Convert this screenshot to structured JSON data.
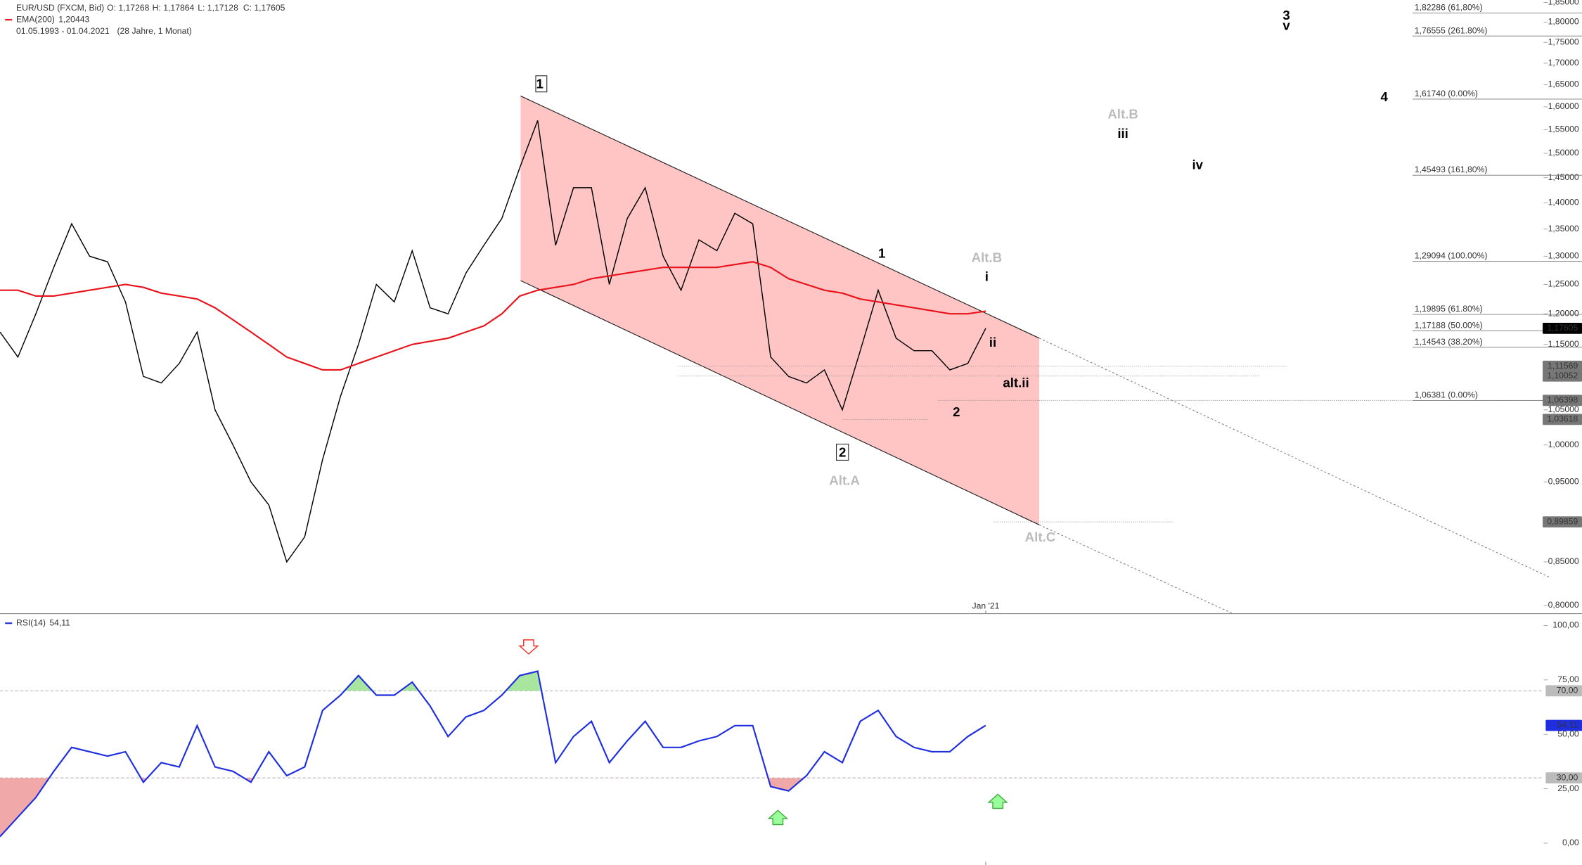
{
  "chart_data": [
    {
      "type": "line",
      "log_y": true,
      "header": {
        "instrument": "EUR/USD (FXCM, Bid)",
        "ohlc": [
          "O: 1,17268",
          "H: 1,17864",
          "L: 1,17128",
          "C: 1,17605"
        ],
        "range": "01.05.1993 - 01.04.2021",
        "range_note": "(28 Jahre, 1 Monat)"
      },
      "categories": [
        null,
        null,
        null,
        null,
        null,
        null,
        null,
        null,
        null,
        null,
        null,
        null,
        null,
        null,
        null,
        null,
        null,
        null,
        null,
        null,
        null,
        null,
        null,
        null,
        null,
        null,
        null,
        null,
        null,
        null,
        null,
        null,
        null,
        null,
        null,
        null,
        null,
        null,
        null,
        null,
        null,
        null,
        null,
        null,
        null,
        null,
        null,
        null,
        null,
        null,
        null,
        null,
        null,
        null,
        null,
        "Jan '21"
      ],
      "series": [
        {
          "name": "EUR/USD",
          "color": "#000000",
          "values": [
            1.17,
            1.13,
            1.2,
            1.28,
            1.36,
            1.3,
            1.29,
            1.22,
            1.1,
            1.09,
            1.12,
            1.17,
            1.05,
            1.0,
            0.95,
            0.92,
            0.85,
            0.88,
            0.98,
            1.07,
            1.15,
            1.25,
            1.22,
            1.31,
            1.21,
            1.2,
            1.27,
            1.32,
            1.37,
            1.47,
            1.57,
            1.32,
            1.43,
            1.43,
            1.25,
            1.37,
            1.43,
            1.3,
            1.24,
            1.33,
            1.31,
            1.38,
            1.36,
            1.13,
            1.1,
            1.09,
            1.11,
            1.05,
            1.14,
            1.24,
            1.16,
            1.14,
            1.14,
            1.11,
            1.12,
            1.17605
          ]
        },
        {
          "name": "EMA(200)",
          "last_label": "1,20443",
          "color": "#e8131b",
          "values": [
            1.24,
            1.24,
            1.23,
            1.23,
            1.235,
            1.24,
            1.245,
            1.25,
            1.245,
            1.235,
            1.23,
            1.225,
            1.21,
            1.19,
            1.17,
            1.15,
            1.13,
            1.12,
            1.11,
            1.11,
            1.12,
            1.13,
            1.14,
            1.15,
            1.155,
            1.16,
            1.17,
            1.18,
            1.2,
            1.23,
            1.24,
            1.245,
            1.25,
            1.26,
            1.265,
            1.27,
            1.275,
            1.28,
            1.28,
            1.28,
            1.28,
            1.285,
            1.29,
            1.28,
            1.26,
            1.25,
            1.24,
            1.235,
            1.225,
            1.22,
            1.215,
            1.21,
            1.205,
            1.2,
            1.2,
            1.20443
          ]
        }
      ],
      "ylim": [
        0.791,
        1.856
      ],
      "yticks": [
        {
          "value": 0.8,
          "label": "0,80000"
        },
        {
          "value": 0.85,
          "label": "0,85000"
        },
        {
          "value": 0.9,
          "label": "0,90000"
        },
        {
          "value": 0.95,
          "label": "0,95000"
        },
        {
          "value": 1.0,
          "label": "1,00000"
        },
        {
          "value": 1.05,
          "label": "1,05000"
        },
        {
          "value": 1.1,
          "label": "1,10000"
        },
        {
          "value": 1.15,
          "label": "1,15000"
        },
        {
          "value": 1.2,
          "label": "1,20000"
        },
        {
          "value": 1.25,
          "label": "1,25000"
        },
        {
          "value": 1.3,
          "label": "1,30000"
        },
        {
          "value": 1.35,
          "label": "1,35000"
        },
        {
          "value": 1.4,
          "label": "1,40000"
        },
        {
          "value": 1.45,
          "label": "1,45000"
        },
        {
          "value": 1.5,
          "label": "1,50000"
        },
        {
          "value": 1.55,
          "label": "1,55000"
        },
        {
          "value": 1.6,
          "label": "1,60000"
        },
        {
          "value": 1.65,
          "label": "1,65000"
        },
        {
          "value": 1.7,
          "label": "1,70000"
        },
        {
          "value": 1.75,
          "label": "1,75000"
        },
        {
          "value": 1.8,
          "label": "1,80000"
        },
        {
          "value": 1.85,
          "label": "1,85000"
        }
      ],
      "fib_levels": [
        {
          "value": 1.82286,
          "label": "1,82286 (61,80%)"
        },
        {
          "value": 1.76555,
          "label": "1,76555 (261.80%)"
        },
        {
          "value": 1.6174,
          "label": "1,61740 (0.00%)"
        },
        {
          "value": 1.45493,
          "label": "1,45493 (161,80%)"
        },
        {
          "value": 1.29094,
          "label": "1,29094 (100.00%)"
        },
        {
          "value": 1.19895,
          "label": "1,19895 (61.80%)"
        },
        {
          "value": 1.17188,
          "label": "1,17188 (50.00%)"
        },
        {
          "value": 1.14543,
          "label": "1,14543 (38.20%)"
        },
        {
          "value": 1.06381,
          "label": "1,06381 (0.00%)"
        }
      ],
      "price_tags": [
        {
          "value": 1.17605,
          "label": "1,17605"
        },
        {
          "value": 1.11569,
          "label": "1,11569"
        },
        {
          "value": 1.10052,
          "label": "1,10052"
        },
        {
          "value": 1.06398,
          "label": "1,06398"
        },
        {
          "value": 1.03618,
          "label": "1,03618"
        },
        {
          "value": 0.89859,
          "label": "0,89859"
        }
      ],
      "wave_labels": [
        "1",
        "2",
        "1",
        "2",
        "Alt.B",
        "i",
        "ii",
        "alt.ii",
        "Alt.A",
        "Alt.C",
        "Alt.B",
        "iii",
        "iv",
        "3",
        "v",
        "4"
      ]
    },
    {
      "type": "line",
      "categories": [
        null,
        null,
        null,
        null,
        null,
        null,
        null,
        null,
        null,
        null,
        null,
        null,
        null,
        null,
        null,
        null,
        null,
        null,
        null,
        null,
        null,
        null,
        null,
        null,
        null,
        null,
        null,
        null,
        null,
        null,
        null,
        null,
        null,
        null,
        null,
        null,
        null,
        null,
        null,
        null,
        null,
        null,
        null,
        null,
        null,
        null,
        null,
        null,
        null,
        null,
        null,
        null,
        null,
        null,
        null,
        "Jan '21"
      ],
      "series": [
        {
          "name": "RSI(14)",
          "last_label": "54,11",
          "color": "#1f2fe0",
          "values": [
            3,
            12,
            21,
            33,
            44,
            42,
            40,
            42,
            28,
            37,
            35,
            54,
            35,
            33,
            28,
            42,
            31,
            35,
            61,
            68,
            77,
            68,
            68,
            74,
            63,
            49,
            58,
            61,
            68,
            77,
            79,
            37,
            49,
            56,
            37,
            47,
            56,
            44,
            44,
            47,
            49,
            54,
            54,
            26,
            24,
            31,
            42,
            37,
            56,
            61,
            49,
            44,
            42,
            42,
            49,
            54.11
          ]
        }
      ],
      "ylim": [
        -10,
        105
      ],
      "yticks": [
        {
          "value": 0,
          "label": "0,00"
        },
        {
          "value": 25,
          "label": "25,00"
        },
        {
          "value": 50,
          "label": "50,00"
        },
        {
          "value": 75,
          "label": "75,00"
        },
        {
          "value": 100,
          "label": "100,00"
        }
      ],
      "levels": [
        {
          "value": 70,
          "label": "70,00"
        },
        {
          "value": 30,
          "label": "30,00"
        }
      ]
    }
  ]
}
